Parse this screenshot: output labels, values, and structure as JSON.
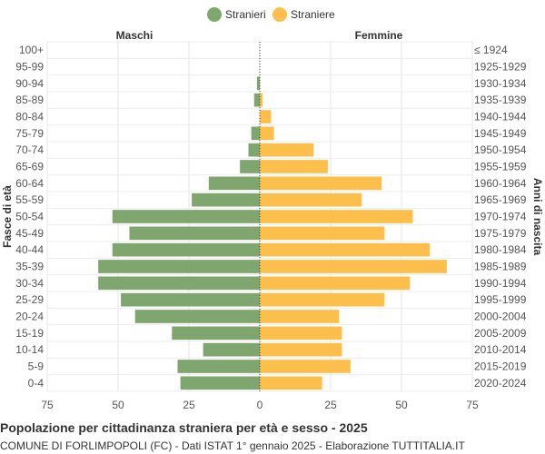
{
  "chart_data": {
    "type": "bar",
    "orientation": "horizontal-population-pyramid",
    "legend": {
      "position": "top-center",
      "items": [
        "Stranieri",
        "Straniere"
      ]
    },
    "left_header": "Maschi",
    "right_header": "Femmine",
    "ylabel_left": "Fasce di età",
    "ylabel_right": "Anni di nascita",
    "xlim": [
      -75,
      75
    ],
    "xticks": [
      "75",
      "50",
      "25",
      "0",
      "25",
      "50",
      "75"
    ],
    "grid": true,
    "categories": [
      "100+",
      "95-99",
      "90-94",
      "85-89",
      "80-84",
      "75-79",
      "70-74",
      "65-69",
      "60-64",
      "55-59",
      "50-54",
      "45-49",
      "40-44",
      "35-39",
      "30-34",
      "25-29",
      "20-24",
      "15-19",
      "10-14",
      "5-9",
      "0-4"
    ],
    "birth_years": [
      "≤ 1924",
      "1925-1929",
      "1930-1934",
      "1935-1939",
      "1940-1944",
      "1945-1949",
      "1950-1954",
      "1955-1959",
      "1960-1964",
      "1965-1969",
      "1970-1974",
      "1975-1979",
      "1980-1984",
      "1985-1989",
      "1990-1994",
      "1995-1999",
      "2000-2004",
      "2005-2009",
      "2010-2014",
      "2015-2019",
      "2020-2024"
    ],
    "series": [
      {
        "name": "Stranieri",
        "color": "#7fa66e",
        "values": [
          0,
          0,
          1,
          2,
          0,
          3,
          4,
          7,
          18,
          24,
          52,
          46,
          52,
          57,
          57,
          49,
          44,
          31,
          20,
          29,
          28
        ]
      },
      {
        "name": "Straniere",
        "color": "#fdbf4b",
        "values": [
          0,
          0,
          0,
          1,
          4,
          5,
          19,
          24,
          43,
          36,
          54,
          44,
          60,
          66,
          53,
          44,
          28,
          29,
          29,
          32,
          22
        ]
      }
    ]
  },
  "footer": {
    "title": "Popolazione per cittadinanza straniera per età e sesso - 2025",
    "subtitle": "COMUNE DI FORLIMPOPOLI (FC) - Dati ISTAT 1° gennaio 2025 - Elaborazione TUTTITALIA.IT"
  }
}
